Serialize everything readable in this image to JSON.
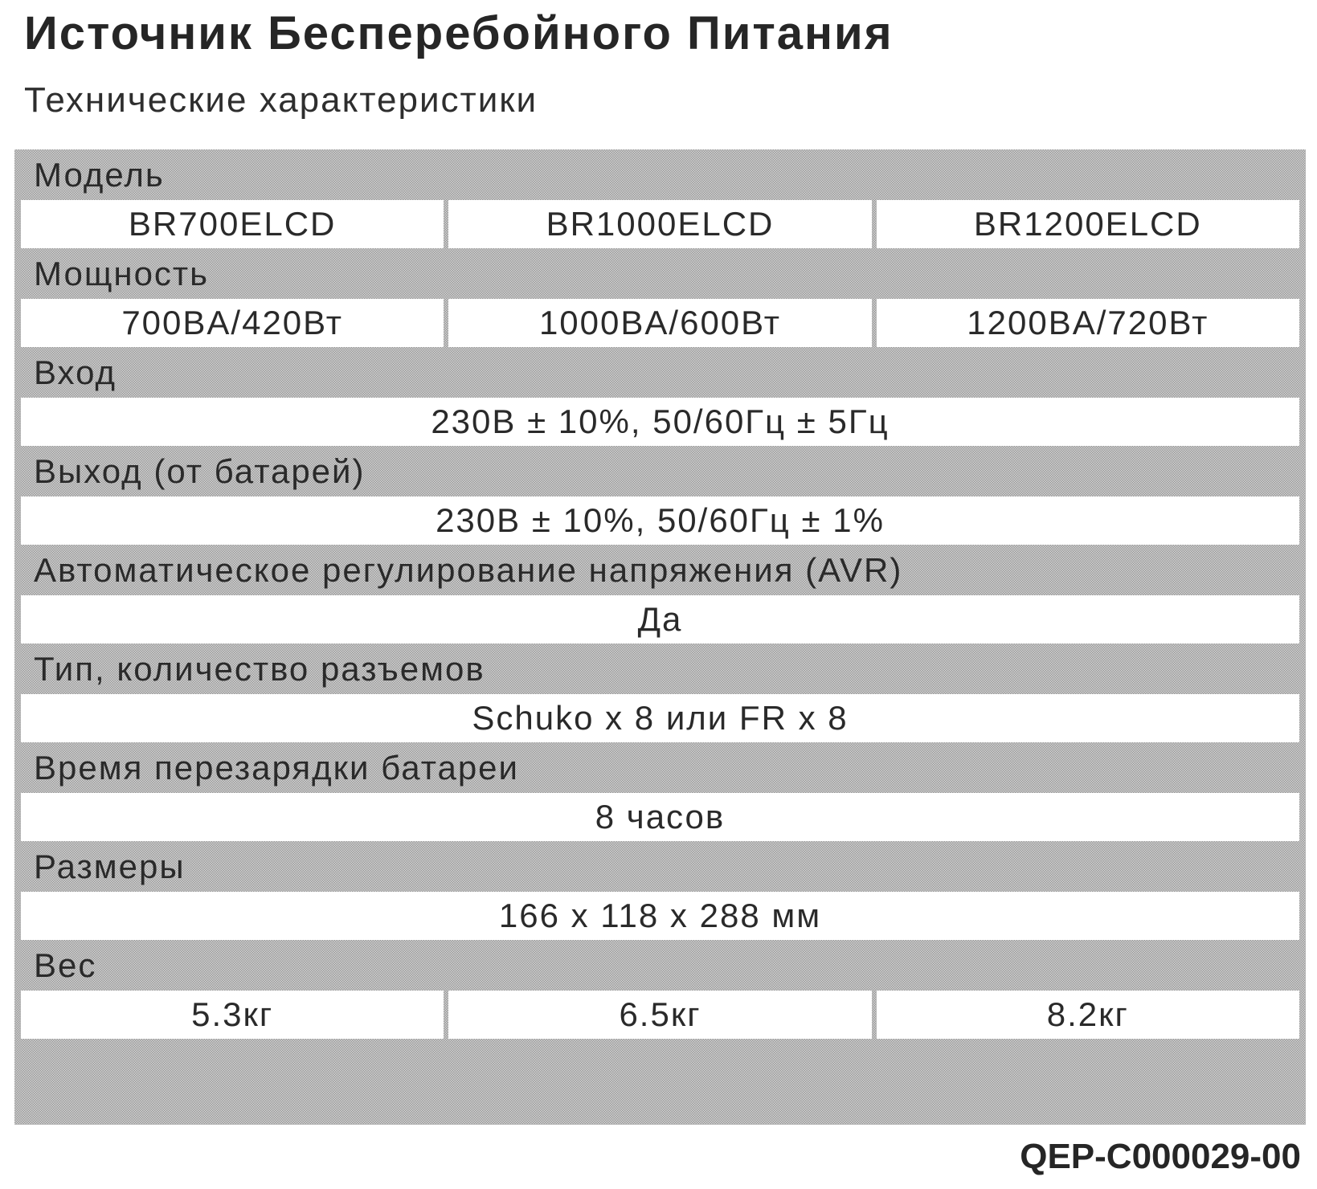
{
  "header": {
    "title": "Источник Бесперебойного Питания",
    "subtitle": "Технические характеристики"
  },
  "specs": [
    {
      "label": "Модель",
      "values": [
        "BR700ELCD",
        "BR1000ELCD",
        "BR1200ELCD"
      ]
    },
    {
      "label": "Мощность",
      "values": [
        "700BA/420Вт",
        "1000BA/600Вт",
        "1200BA/720Вт"
      ]
    },
    {
      "label": "Вход",
      "values": [
        "230В ± 10%, 50/60Гц ± 5Гц"
      ]
    },
    {
      "label": "Выход (от батарей)",
      "values": [
        "230В ± 10%, 50/60Гц ± 1%"
      ]
    },
    {
      "label": "Автоматическое регулирование напряжения (AVR)",
      "values": [
        "Да"
      ]
    },
    {
      "label": "Тип, количество разъемов",
      "values": [
        "Schuko x 8 или FR x 8"
      ]
    },
    {
      "label": "Время перезарядки батареи",
      "values": [
        "8 часов"
      ]
    },
    {
      "label": "Размеры",
      "values": [
        "166 x 118 x 288 мм"
      ]
    },
    {
      "label": "Вес",
      "values": [
        "5.3кг",
        "6.5кг",
        "8.2кг"
      ]
    }
  ],
  "footer": {
    "code": "QEP-C000029-00"
  }
}
